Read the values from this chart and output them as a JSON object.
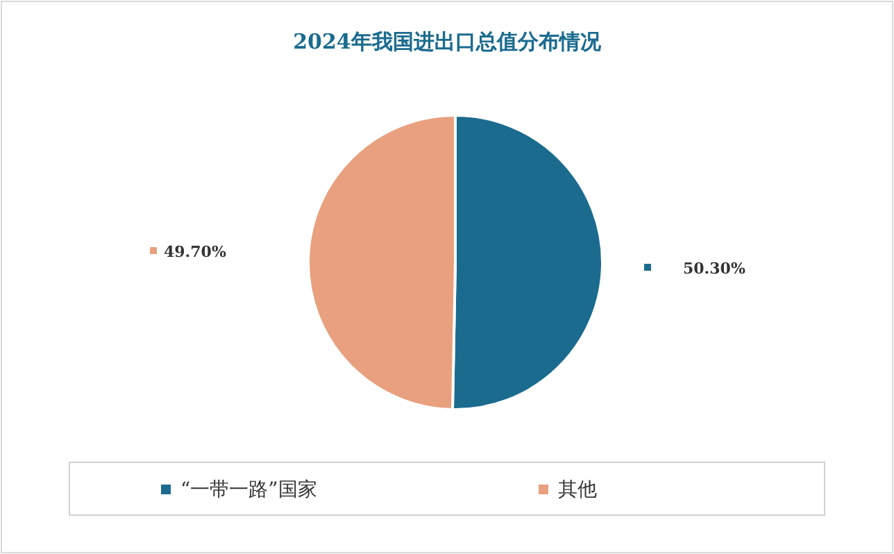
{
  "chart_data": {
    "type": "pie",
    "title": "2024年我国进出口总值分布情况",
    "categories": [
      "“一带一路”国家",
      "其他"
    ],
    "values": [
      50.3,
      49.7
    ],
    "colors": [
      "#1b6b8f",
      "#e8a07e"
    ],
    "value_labels": [
      "50.30%",
      "49.70%"
    ],
    "legend": "bottom"
  }
}
